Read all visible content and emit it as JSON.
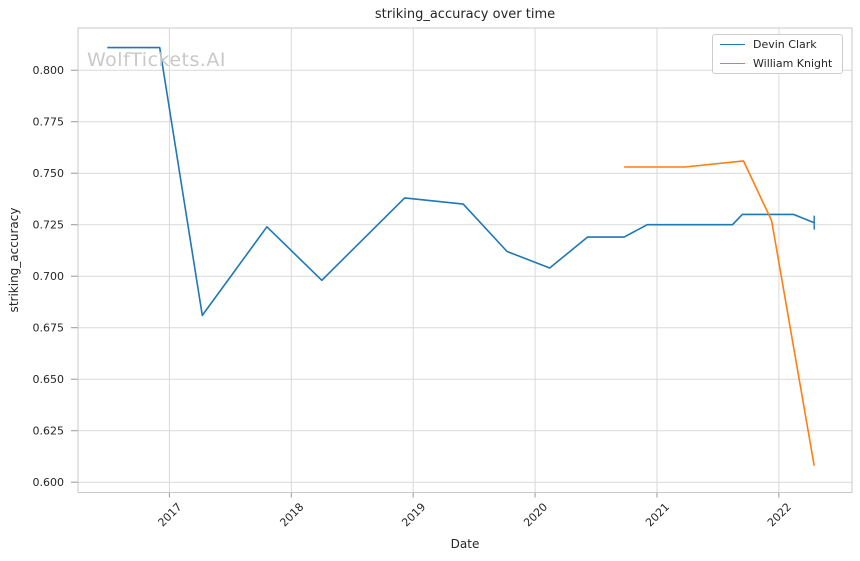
{
  "page": {
    "watermark": "WolfTickets.AI"
  },
  "chart_data": {
    "type": "line",
    "title": "striking_accuracy over time",
    "xlabel": "Date",
    "ylabel": "striking_accuracy",
    "xlim": [
      2016.25,
      2022.6
    ],
    "ylim": [
      0.595,
      0.8205
    ],
    "x_ticks": [
      2017,
      2018,
      2019,
      2020,
      2021,
      2022
    ],
    "y_ticks": [
      0.6,
      0.625,
      0.65,
      0.675,
      0.7,
      0.725,
      0.75,
      0.775,
      0.8
    ],
    "grid": true,
    "legend": {
      "position": "upper-right",
      "entries": [
        "Devin Clark",
        "William Knight"
      ]
    },
    "series": [
      {
        "name": "Devin Clark",
        "color": "#1f77b4",
        "end_marker": "tick",
        "x": [
          2016.49,
          2016.92,
          2017.27,
          2017.8,
          2018.25,
          2018.93,
          2019.41,
          2019.77,
          2020.12,
          2020.43,
          2020.73,
          2020.92,
          2021.62,
          2021.7,
          2022.12,
          2022.29
        ],
        "y": [
          0.811,
          0.811,
          0.681,
          0.724,
          0.698,
          0.738,
          0.735,
          0.712,
          0.704,
          0.719,
          0.719,
          0.725,
          0.725,
          0.73,
          0.73,
          0.726
        ]
      },
      {
        "name": "William Knight",
        "color": "#ff7f0e",
        "end_marker": "none",
        "x": [
          2020.73,
          2021.23,
          2021.71,
          2021.94,
          2022.29
        ],
        "y": [
          0.753,
          0.753,
          0.756,
          0.727,
          0.608
        ]
      }
    ],
    "style": {
      "grid_color": "#d9d9d9",
      "spine_color": "#c9c9c9",
      "tick_color": "#999999",
      "text_color": "#262626",
      "line_width": 1.6
    }
  }
}
